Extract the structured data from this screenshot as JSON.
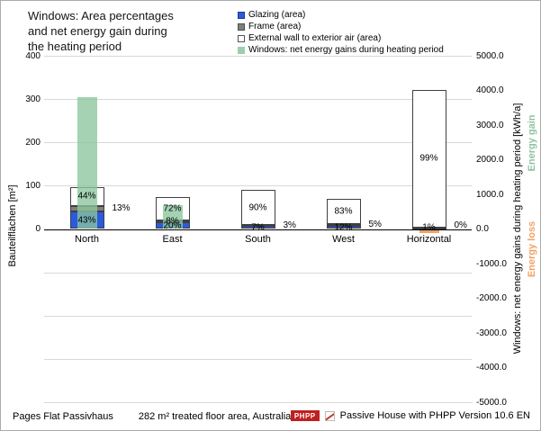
{
  "title": "Windows: Area percentages\nand net energy gain during\nthe heating period",
  "legend": [
    {
      "label": "Glazing (area)",
      "swatch": "glazing"
    },
    {
      "label": "Frame (area)",
      "swatch": "frame"
    },
    {
      "label": "External wall to exterior air (area)",
      "swatch": "wall"
    },
    {
      "label": "Windows: net energy gains during heating period",
      "swatch": "gain"
    }
  ],
  "colors": {
    "glazing": "#2a5add",
    "frame": "#7f7f7f",
    "wall": "#ffffff",
    "segment_border": "#404040",
    "gain_fill": "rgba(139,197,157,0.78)",
    "gain_swatch": "#9ccfae",
    "loss_fill": "rgba(232,150,90,0.88)",
    "gain_text": "#8fc3a0",
    "loss_text": "#f2a263",
    "grid": "#d8d8d8",
    "badge_red": "#bf2020"
  },
  "chart_data": {
    "type": "bar",
    "title": "Windows: Area percentages and net energy gain during the heating period",
    "categories": [
      "North",
      "East",
      "South",
      "West",
      "Horizontal"
    ],
    "left_axis": {
      "label": "Bauteilflächen [m²]",
      "max": 400,
      "min": -400,
      "step": 100,
      "tick_values": [
        400,
        300,
        200,
        100,
        0
      ],
      "tick_labels": [
        "400",
        "300",
        "200",
        "100",
        "0"
      ]
    },
    "right_axis": {
      "label": "Windows: net energy gains during heating period [kWh/a]",
      "max": 5000,
      "min": -5000,
      "step": 1000,
      "tick_labels": [
        "5000.0",
        "4000.0",
        "3000.0",
        "2000.0",
        "1000.0",
        "0.0",
        "-1000.0",
        "-2000.0",
        "-3000.0",
        "-4000.0",
        "-5000.0"
      ],
      "gain_label": "Energy gain",
      "loss_label": "Energy loss"
    },
    "bars": [
      {
        "category": "North",
        "total_area_m2": 96,
        "glazing_pct": 43,
        "frame_pct": 13,
        "wall_pct": 44,
        "net_energy_kwh": 3800,
        "frame_label_placement": "outside"
      },
      {
        "category": "East",
        "total_area_m2": 74,
        "glazing_pct": 20,
        "frame_pct": 8,
        "wall_pct": 72,
        "net_energy_kwh": 700,
        "frame_label_placement": "inside"
      },
      {
        "category": "South",
        "total_area_m2": 90,
        "glazing_pct": 7,
        "frame_pct": 3,
        "wall_pct": 90,
        "net_energy_kwh": 0,
        "frame_label_placement": "outside"
      },
      {
        "category": "West",
        "total_area_m2": 69,
        "glazing_pct": 12,
        "frame_pct": 5,
        "wall_pct": 83,
        "net_energy_kwh": 0,
        "frame_label_placement": "outside"
      },
      {
        "category": "Horizontal",
        "total_area_m2": 322,
        "glazing_pct": 1,
        "frame_pct": 0,
        "wall_pct": 99,
        "net_energy_kwh": -100,
        "frame_label_placement": "outside"
      }
    ],
    "grid": true,
    "legend_position": "top-right"
  },
  "footer": {
    "project": "Pages Flat Passivhaus",
    "info": "282 m² treated floor area, Australia",
    "badge": "PHPP",
    "credit": "Passive House with PHPP Version 10.6 EN"
  }
}
